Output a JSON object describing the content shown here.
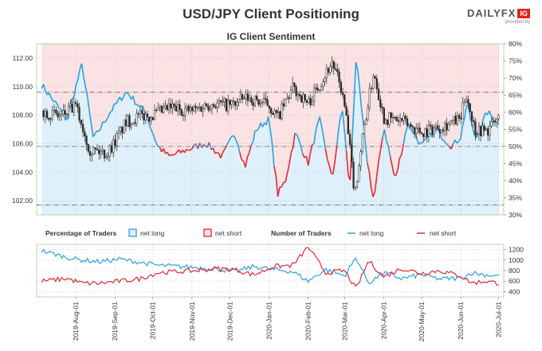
{
  "header": {
    "title": "USD/JPY Client Positioning",
    "logo_text": "DAILYFX",
    "logo_badge": "IG",
    "logo_sub": "provided by"
  },
  "colors": {
    "long": "#2e9fe0",
    "short": "#e02a36",
    "candle": "#2a2a2a",
    "long_bg": "#dff0fb",
    "short_bg": "#fbe2e3",
    "frame": "#71b05c",
    "grid": "#bbbbbb"
  },
  "chart_data": [
    {
      "type": "candlestick-with-sentiment",
      "title": "IG Client Sentiment",
      "y_left": {
        "range": [
          101.0,
          113.0
        ],
        "ticks": [
          "112.00",
          "110.00",
          "108.00",
          "106.00",
          "104.00",
          "102.00"
        ]
      },
      "y_right": {
        "range": [
          30,
          80
        ],
        "ticks": [
          "80%",
          "75%",
          "70%",
          "65%",
          "60%",
          "55%",
          "50%",
          "45%",
          "40%",
          "35%",
          "30%"
        ]
      },
      "x_ticks": [
        "2019-Aug-01",
        "2019-Sep-01",
        "2019-Oct-01",
        "2019-Nov-01",
        "2019-Dec-01",
        "2020-Jan-01",
        "2020-Feb-01",
        "2020-Mar-01",
        "2020-Apr-01",
        "2020-May-01",
        "2020-Jun-01",
        "2020-Jul-01"
      ],
      "reference_lines": {
        "price": [
          109.6,
          105.8,
          101.7
        ],
        "description": "dash-dot price levels"
      },
      "price_anchors": {
        "x": [
          "2019-Jul-05",
          "2019-Jul-20",
          "2019-Aug-01",
          "2019-Aug-12",
          "2019-Aug-26",
          "2019-Sep-10",
          "2019-Sep-20",
          "2019-Oct-01",
          "2019-Oct-15",
          "2019-Nov-01",
          "2019-Nov-15",
          "2019-Dec-01",
          "2019-Dec-15",
          "2020-Jan-01",
          "2020-Jan-08",
          "2020-Jan-20",
          "2020-Feb-01",
          "2020-Feb-20",
          "2020-Feb-27",
          "2020-Mar-02",
          "2020-Mar-09",
          "2020-Mar-16",
          "2020-Mar-24",
          "2020-Apr-01",
          "2020-Apr-15",
          "2020-May-01",
          "2020-May-15",
          "2020-Jun-01",
          "2020-Jun-05",
          "2020-Jun-12",
          "2020-Jun-22",
          "2020-Jul-01"
        ],
        "close": [
          108.3,
          107.9,
          108.6,
          105.6,
          105.3,
          107.5,
          107.9,
          108.0,
          108.5,
          108.3,
          108.8,
          108.7,
          109.2,
          108.7,
          107.8,
          109.9,
          108.8,
          111.7,
          109.9,
          108.0,
          102.5,
          107.0,
          111.1,
          107.8,
          107.6,
          106.8,
          107.2,
          107.7,
          109.6,
          107.0,
          106.9,
          107.8
        ]
      },
      "sentiment_anchors": {
        "x": [
          "2019-Jul-05",
          "2019-Jul-25",
          "2019-Aug-06",
          "2019-Aug-15",
          "2019-Aug-28",
          "2019-Sep-10",
          "2019-Sep-25",
          "2019-Oct-05",
          "2019-Oct-14",
          "2019-Oct-28",
          "2019-Nov-12",
          "2019-Nov-25",
          "2019-Dec-05",
          "2019-Dec-13",
          "2019-Dec-22",
          "2020-Jan-01",
          "2020-Jan-08",
          "2020-Jan-14",
          "2020-Jan-22",
          "2020-Feb-01",
          "2020-Feb-10",
          "2020-Feb-20",
          "2020-Feb-28",
          "2020-Mar-05",
          "2020-Mar-10",
          "2020-Mar-18",
          "2020-Mar-24",
          "2020-Apr-01",
          "2020-Apr-10",
          "2020-Apr-20",
          "2020-May-01",
          "2020-May-12",
          "2020-May-25",
          "2020-Jun-01",
          "2020-Jun-06",
          "2020-Jun-12",
          "2020-Jun-22",
          "2020-Jul-01"
        ],
        "pct_long": [
          68,
          58,
          74,
          52,
          60,
          66,
          60,
          50,
          47,
          49,
          51,
          47,
          54,
          44,
          55,
          58,
          36,
          40,
          54,
          45,
          58,
          40,
          62,
          37,
          76,
          48,
          34,
          56,
          40,
          57,
          50,
          55,
          50,
          53,
          63,
          52,
          60,
          57
        ]
      },
      "long_above_pct": 50
    },
    {
      "type": "line",
      "title": "Number of Traders",
      "legend_left": {
        "title": "Percentage of Traders",
        "items": [
          "net long",
          "net short"
        ]
      },
      "legend_right": {
        "title": "Number of Traders",
        "items": [
          "net long",
          "net short"
        ]
      },
      "y_right": {
        "range": [
          300,
          1300
        ],
        "ticks": [
          "1200",
          "1000",
          "800",
          "600",
          "400"
        ]
      },
      "series": [
        {
          "name": "net long",
          "x": [
            "2019-Jul-05",
            "2019-Jul-25",
            "2019-Aug-06",
            "2019-Aug-20",
            "2019-Sep-05",
            "2019-Sep-20",
            "2019-Oct-05",
            "2019-Oct-20",
            "2019-Nov-05",
            "2019-Nov-20",
            "2019-Dec-05",
            "2019-Dec-20",
            "2020-Jan-05",
            "2020-Jan-20",
            "2020-Feb-01",
            "2020-Feb-15",
            "2020-Mar-01",
            "2020-Mar-10",
            "2020-Mar-20",
            "2020-Apr-01",
            "2020-Apr-15",
            "2020-May-01",
            "2020-May-15",
            "2020-Jun-01",
            "2020-Jun-10",
            "2020-Jun-20",
            "2020-Jul-01"
          ],
          "values": [
            1180,
            1050,
            1000,
            970,
            1020,
            960,
            900,
            880,
            860,
            830,
            780,
            880,
            820,
            780,
            600,
            820,
            700,
            1050,
            560,
            760,
            650,
            720,
            640,
            660,
            760,
            720,
            700
          ]
        },
        {
          "name": "net short",
          "x": [
            "2019-Jul-05",
            "2019-Jul-25",
            "2019-Aug-06",
            "2019-Aug-20",
            "2019-Sep-05",
            "2019-Sep-20",
            "2019-Oct-05",
            "2019-Oct-20",
            "2019-Nov-05",
            "2019-Nov-20",
            "2019-Dec-05",
            "2019-Dec-20",
            "2020-Jan-05",
            "2020-Jan-20",
            "2020-Feb-01",
            "2020-Feb-15",
            "2020-Mar-01",
            "2020-Mar-10",
            "2020-Mar-20",
            "2020-Apr-01",
            "2020-Apr-15",
            "2020-May-01",
            "2020-May-15",
            "2020-Jun-01",
            "2020-Jun-10",
            "2020-Jun-20",
            "2020-Jul-01"
          ],
          "values": [
            600,
            650,
            560,
            560,
            600,
            640,
            760,
            780,
            800,
            840,
            820,
            720,
            880,
            900,
            1250,
            760,
            800,
            450,
            990,
            680,
            840,
            750,
            800,
            700,
            560,
            600,
            560
          ]
        }
      ]
    }
  ]
}
